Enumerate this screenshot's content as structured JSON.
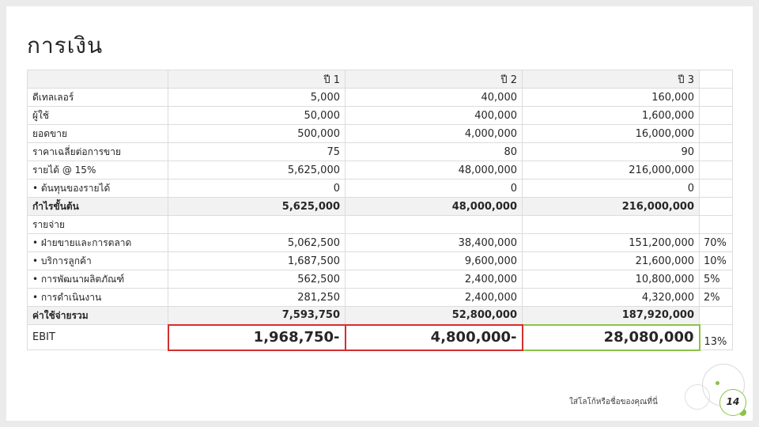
{
  "title": "การเงิน",
  "columns": [
    "",
    "ปี 1",
    "ปี 2",
    "ปี 3",
    ""
  ],
  "rows": [
    {
      "label": "ดีเทลเลอร์",
      "v1": "5,000",
      "v2": "40,000",
      "v3": "160,000",
      "pct": ""
    },
    {
      "label": "ผู้ใช้",
      "v1": "50,000",
      "v2": "400,000",
      "v3": "1,600,000",
      "pct": ""
    },
    {
      "label": "ยอดขาย",
      "v1": "500,000",
      "v2": "4,000,000",
      "v3": "16,000,000",
      "pct": ""
    },
    {
      "label": "ราคาเฉลี่ยต่อการขาย",
      "v1": "75",
      "v2": "80",
      "v3": "90",
      "pct": ""
    },
    {
      "label": "รายได้ @ 15%",
      "v1": "5,625,000",
      "v2": "48,000,000",
      "v3": "216,000,000",
      "pct": ""
    },
    {
      "label": "• ต้นทุนของรายได้",
      "v1": "0",
      "v2": "0",
      "v3": "0",
      "pct": ""
    },
    {
      "label": "กำไรขั้นต้น",
      "v1": "5,625,000",
      "v2": "48,000,000",
      "v3": "216,000,000",
      "pct": ""
    },
    {
      "label": "รายจ่าย",
      "v1": "",
      "v2": "",
      "v3": "",
      "pct": ""
    },
    {
      "label": "• ฝ่ายขายและการตลาด",
      "v1": "5,062,500",
      "v2": "38,400,000",
      "v3": "151,200,000",
      "pct": "70%"
    },
    {
      "label": "• บริการลูกค้า",
      "v1": "1,687,500",
      "v2": "9,600,000",
      "v3": "21,600,000",
      "pct": "10%"
    },
    {
      "label": "• การพัฒนาผลิตภัณฑ์",
      "v1": "562,500",
      "v2": "2,400,000",
      "v3": "10,800,000",
      "pct": "5%"
    },
    {
      "label": "• การดำเนินงาน",
      "v1": "281,250",
      "v2": "2,400,000",
      "v3": "4,320,000",
      "pct": "2%"
    },
    {
      "label": "ค่าใช้จ่ายรวม",
      "v1": "7,593,750",
      "v2": "52,800,000",
      "v3": "187,920,000",
      "pct": ""
    },
    {
      "label": "EBIT",
      "v1": "1,968,750-",
      "v2": "4,800,000-",
      "v3": "28,080,000",
      "pct": "13%"
    }
  ],
  "footer": "ใส่โลโก้หรือชื่อของคุณที่นี่",
  "page_number": "14",
  "colors": {
    "accent_green": "#8bc34a",
    "negative_red": "#d32f2f",
    "header_gray": "#f2f2f2"
  }
}
